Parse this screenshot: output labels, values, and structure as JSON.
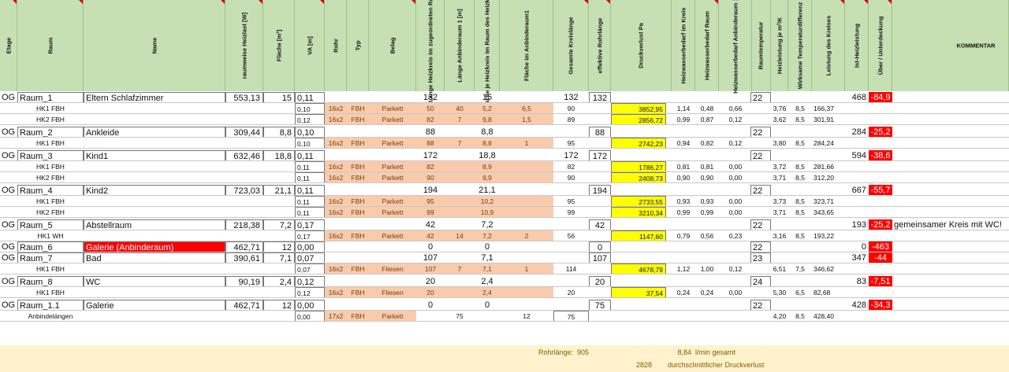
{
  "headers": [
    "Etage",
    "Raum",
    "Name",
    "raumweise Heizlast [W]",
    "Fläche [m²]",
    "VA [m]",
    "Rohr",
    "Typ",
    "Belag",
    "Länge Heizkreis im zugeordneten Raum",
    "Länge Anbinderaum 1 [m]",
    "Fläche je Heizkreis im Raum des Heizkreises",
    "Fläche im Anbinderaum1",
    "Gesamte Kreislänge",
    "effektive Rohrlänge",
    "Druckverlust Pa",
    "Heizwasserbedarf im Kreis",
    "Heizwasserbedarf Raum",
    "Heizwasserbedarf Anbinderaum 1",
    "Raumtemperatur",
    "Heizleistung je m²/K",
    "Wirksame Temperaturdifferenz",
    "Leistung des Kreises",
    "Ist-Heizleistung",
    "Über / Unterdeckung",
    "KOMMENTAR"
  ],
  "rows": [
    {
      "kind": "room",
      "etage": "OG",
      "raum": "Raum_1",
      "name": "Eltern Schlafzimmer",
      "heizlast": "553,13",
      "flaeche": "15",
      "va": "0,11",
      "laenge": "132",
      "flhk": "15",
      "ges": "132",
      "eff": "132",
      "rt": "22",
      "ist": "468",
      "ueber": "-84,9"
    },
    {
      "kind": "hk",
      "label": "HK1 FBH",
      "va": "0,10",
      "rohr": "16x2",
      "typ": "FBH",
      "belag": "Parkett",
      "laenge": "50",
      "anb": "40",
      "flhk": "5,2",
      "flanb": "6,5",
      "ges": "90",
      "dv": "3852,95",
      "hwk": "1,14",
      "hwr": "0,48",
      "hwa": "0,66",
      "hl": "3,76",
      "wt": "8,5",
      "lk": "166,37"
    },
    {
      "kind": "hk",
      "label": "HK2 FBH",
      "va": "0,12",
      "rohr": "16x2",
      "typ": "FBH",
      "belag": "Parkett",
      "laenge": "82",
      "anb": "7",
      "flhk": "9,8",
      "flanb": "1,5",
      "ges": "89",
      "dv": "2856,72",
      "hwk": "0,99",
      "hwr": "0,87",
      "hwa": "0,12",
      "hl": "3,62",
      "wt": "8,5",
      "lk": "301,91"
    },
    {
      "kind": "room",
      "etage": "OG",
      "raum": "Raum_2",
      "name": "Ankleide",
      "heizlast": "309,44",
      "flaeche": "8,8",
      "va": "0,10",
      "laenge": "88",
      "flhk": "8,8",
      "ges": "",
      "eff": "88",
      "rt": "22",
      "ist": "284",
      "ueber": "-25,2"
    },
    {
      "kind": "hk",
      "label": "HK1 FBH",
      "va": "0,10",
      "rohr": "16x2",
      "typ": "FBH",
      "belag": "Parkett",
      "laenge": "88",
      "anb": "7",
      "flhk": "8,8",
      "flanb": "1",
      "ges": "95",
      "dv": "2742,23",
      "hwk": "0,94",
      "hwr": "0,82",
      "hwa": "0,12",
      "hl": "3,80",
      "wt": "8,5",
      "lk": "284,24"
    },
    {
      "kind": "room",
      "etage": "OG",
      "raum": "Raum_3",
      "name": "Kind1",
      "heizlast": "632,46",
      "flaeche": "18,8",
      "va": "0,11",
      "laenge": "172",
      "flhk": "18,8",
      "ges": "172",
      "eff": "172",
      "rt": "22",
      "ist": "594",
      "ueber": "-38,6"
    },
    {
      "kind": "hk",
      "label": "HK1 FBH",
      "va": "0,11",
      "rohr": "16x2",
      "typ": "FBH",
      "belag": "Parkett",
      "laenge": "82",
      "anb": "",
      "flhk": "8,9",
      "flanb": "",
      "ges": "82",
      "dv": "1786,27",
      "hwk": "0,81",
      "hwr": "0,81",
      "hwa": "0,00",
      "hl": "3,72",
      "wt": "8,5",
      "lk": "281,66"
    },
    {
      "kind": "hk",
      "label": "HK2 FBH",
      "va": "0,11",
      "rohr": "16x2",
      "typ": "FBH",
      "belag": "Parkett",
      "laenge": "90",
      "anb": "",
      "flhk": "9,9",
      "flanb": "",
      "ges": "90",
      "dv": "2408,73",
      "hwk": "0,90",
      "hwr": "0,90",
      "hwa": "0,00",
      "hl": "3,71",
      "wt": "8,5",
      "lk": "312,20"
    },
    {
      "kind": "room",
      "etage": "OG",
      "raum": "Raum_4",
      "name": "Kind2",
      "heizlast": "723,03",
      "flaeche": "21,1",
      "va": "0,11",
      "laenge": "194",
      "flhk": "21,1",
      "ges": "",
      "eff": "194",
      "rt": "22",
      "ist": "667",
      "ueber": "-55,7"
    },
    {
      "kind": "hk",
      "label": "HK1 FBH",
      "va": "0,11",
      "rohr": "16x2",
      "typ": "FBH",
      "belag": "Parkett",
      "laenge": "95",
      "anb": "",
      "flhk": "10,2",
      "flanb": "",
      "ges": "95",
      "dv": "2733,55",
      "hwk": "0,93",
      "hwr": "0,93",
      "hwa": "0,00",
      "hl": "3,73",
      "wt": "8,5",
      "lk": "323,71"
    },
    {
      "kind": "hk",
      "label": "HK2 FBH",
      "va": "0,11",
      "rohr": "16x2",
      "typ": "FBH",
      "belag": "Parkett",
      "laenge": "99",
      "anb": "",
      "flhk": "10,9",
      "flanb": "",
      "ges": "99",
      "dv": "3210,34",
      "hwk": "0,99",
      "hwr": "0,99",
      "hwa": "0,00",
      "hl": "3,71",
      "wt": "8,5",
      "lk": "343,65"
    },
    {
      "kind": "room",
      "etage": "OG",
      "raum": "Raum_5",
      "name": "Abstellraum",
      "heizlast": "218,38",
      "flaeche": "7,2",
      "va": "0,17",
      "laenge": "42",
      "flhk": "7,2",
      "ges": "",
      "eff": "42",
      "rt": "22",
      "ist": "193",
      "ueber": "-25,2",
      "kommentar": "gemeinsamer Kreis mit WC!"
    },
    {
      "kind": "hk",
      "label": "HK1 WH",
      "va": "0,17",
      "rohr": "16x2",
      "typ": "FBH",
      "belag": "Parkett",
      "laenge": "42",
      "anb": "14",
      "flhk": "7,2",
      "flanb": "2",
      "ges": "56",
      "dv": "1147,60",
      "hwk": "0,79",
      "hwr": "0,56",
      "hwa": "0,23",
      "hl": "3,16",
      "wt": "8,5",
      "lk": "193,22"
    },
    {
      "kind": "room",
      "etage": "OG",
      "raum": "Raum_6",
      "name": "Galerie (Anbinderaum)",
      "namered": true,
      "heizlast": "462,71",
      "flaeche": "12",
      "va": "0,00",
      "laenge": "0",
      "flhk": "0",
      "ges": "",
      "eff": "0",
      "rt": "22",
      "ist": "0",
      "ueber": "-463"
    },
    {
      "kind": "room",
      "etage": "OG",
      "raum": "Raum_7",
      "name": "Bad",
      "heizlast": "390,61",
      "flaeche": "7,1",
      "va": "0,07",
      "laenge": "107",
      "flhk": "7,1",
      "ges": "",
      "eff": "107",
      "rt": "23",
      "ist": "347",
      "ueber": "-44"
    },
    {
      "kind": "hk",
      "label": "HK1 FBH",
      "va": "0,07",
      "rohr": "16x2",
      "typ": "FBH",
      "belag": "Fliesen",
      "laenge": "107",
      "anb": "7",
      "flhk": "7,1",
      "flanb": "1",
      "ges": "114",
      "dv": "4678,79",
      "hwk": "1,12",
      "hwr": "1,00",
      "hwa": "0,12",
      "hl": "6,51",
      "wt": "7,5",
      "lk": "346,62"
    },
    {
      "kind": "room",
      "etage": "OG",
      "raum": "Raum_8",
      "name": "WC",
      "heizlast": "90,19",
      "flaeche": "2,4",
      "va": "0,12",
      "laenge": "20",
      "flhk": "2,4",
      "ges": "",
      "eff": "20",
      "rt": "24",
      "ist": "83",
      "ueber": "-7,51"
    },
    {
      "kind": "hk",
      "label": "HK1 FBH",
      "va": "0,12",
      "rohr": "16x2",
      "typ": "FBH",
      "belag": "Fliesen",
      "laenge": "20",
      "anb": "",
      "flhk": "2,4",
      "flanb": "",
      "ges": "20",
      "dv": "37,54",
      "hwk": "0,24",
      "hwr": "0,24",
      "hwa": "0,00",
      "hl": "5,30",
      "wt": "6,5",
      "lk": "82,68"
    },
    {
      "kind": "room",
      "etage": "OG",
      "raum": "Raum_1.1",
      "name": "Galerie",
      "heizlast": "462,71",
      "flaeche": "12",
      "va": "0,00",
      "laenge": "0",
      "flhk": "0",
      "ges": "",
      "eff": "75",
      "rt": "22",
      "ist": "428",
      "ueber": "-34,3"
    },
    {
      "kind": "anb",
      "label": "Anbindelängen",
      "va": "0,00",
      "rohr": "17x2",
      "typ": "FBH",
      "belag": "Parkett",
      "anb": "75",
      "flanb": "12",
      "ges": "75",
      "hl": "4,20",
      "wt": "8,5",
      "lk": "428,40"
    }
  ],
  "footer": {
    "rohrlaenge_label": "Rohrlänge:",
    "rohrlaenge_value": "905",
    "durchfluss_value": "8,84",
    "durchfluss_label": "l/min gesamt",
    "druck_value": "2828",
    "druck_label": "durchschnittlicher Druckverlust"
  },
  "colors": {
    "header": "#c6e0b4",
    "orange": "#f8cbad",
    "yellow": "#ffff00",
    "red": "#ff0000",
    "footer": "#fff2cc"
  }
}
